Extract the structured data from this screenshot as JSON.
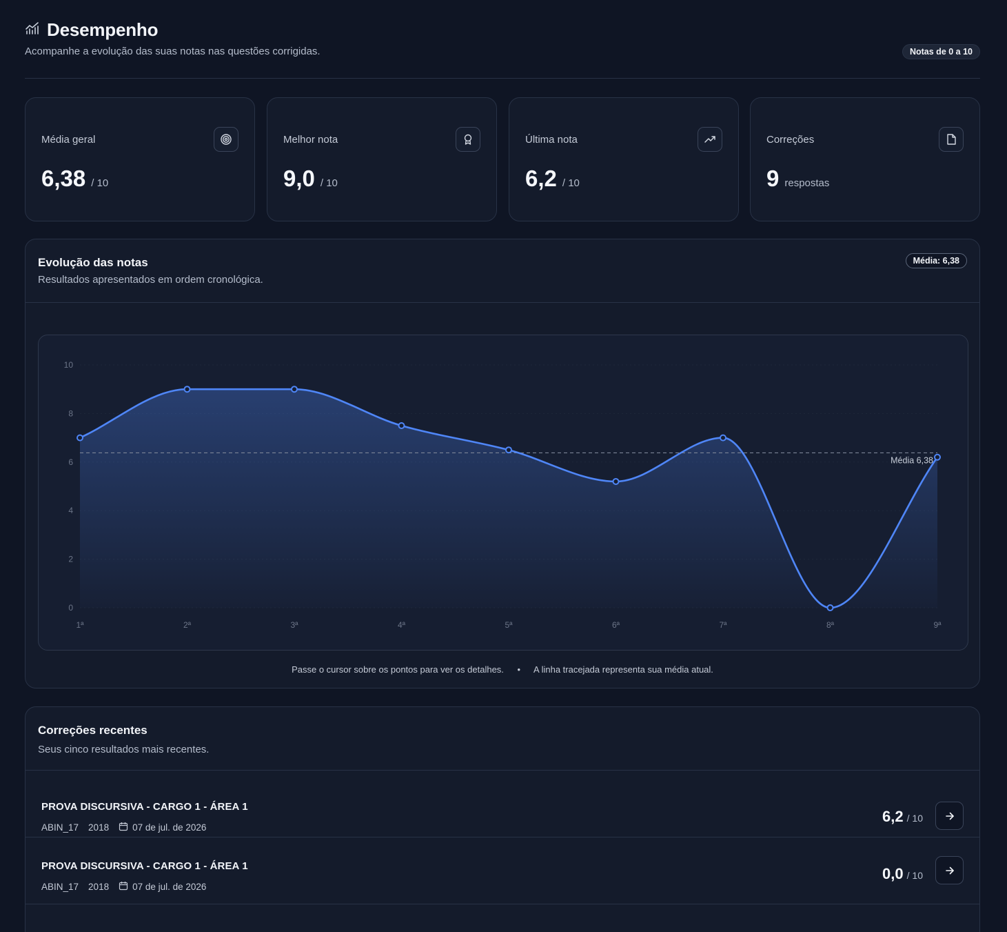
{
  "header": {
    "title": "Desempenho",
    "subtitle": "Acompanhe a evolução das suas notas nas questões corrigidas.",
    "scale_badge": "Notas de 0 a 10"
  },
  "stats": [
    {
      "label": "Média geral",
      "value": "6,38",
      "unit": "/ 10",
      "icon": "target-icon"
    },
    {
      "label": "Melhor nota",
      "value": "9,0",
      "unit": "/ 10",
      "icon": "award-icon"
    },
    {
      "label": "Última nota",
      "value": "6,2",
      "unit": "/ 10",
      "icon": "trending-up-icon"
    },
    {
      "label": "Correções",
      "value": "9",
      "unit": "respostas",
      "icon": "file-icon"
    }
  ],
  "chart_section": {
    "title": "Evolução das notas",
    "subtitle": "Resultados apresentados em ordem cronológica.",
    "avg_badge": "Média: 6,38",
    "avg_line_label": "Média 6,38",
    "footer_hint": "Passe o cursor sobre os pontos para ver os detalhes.",
    "footer_sep": "•",
    "footer_note": "A linha tracejada representa sua média atual."
  },
  "chart_data": {
    "type": "line",
    "x": [
      "1ª",
      "2ª",
      "3ª",
      "4ª",
      "5ª",
      "6ª",
      "7ª",
      "8ª",
      "9ª"
    ],
    "series": [
      {
        "values": [
          7.0,
          9.0,
          9.0,
          7.5,
          6.5,
          5.2,
          7.0,
          0.0,
          6.2
        ]
      }
    ],
    "ylim": [
      0,
      10
    ],
    "yticks": [
      "0",
      "2",
      "4",
      "6",
      "8",
      "10"
    ],
    "average": 6.38,
    "line_color": "#4f86f7",
    "grid": false
  },
  "recent": {
    "title": "Correções recentes",
    "subtitle": "Seus cinco resultados mais recentes.",
    "items": [
      {
        "title": "PROVA DISCURSIVA - CARGO 1 - ÁREA 1",
        "code": "ABIN_17",
        "year": "2018",
        "date": "07 de jul. de 2026",
        "score": "6,2",
        "unit": "/ 10"
      },
      {
        "title": "PROVA DISCURSIVA - CARGO 1 - ÁREA 1",
        "code": "ABIN_17",
        "year": "2018",
        "date": "07 de jul. de 2026",
        "score": "0,0",
        "unit": "/ 10"
      }
    ]
  }
}
